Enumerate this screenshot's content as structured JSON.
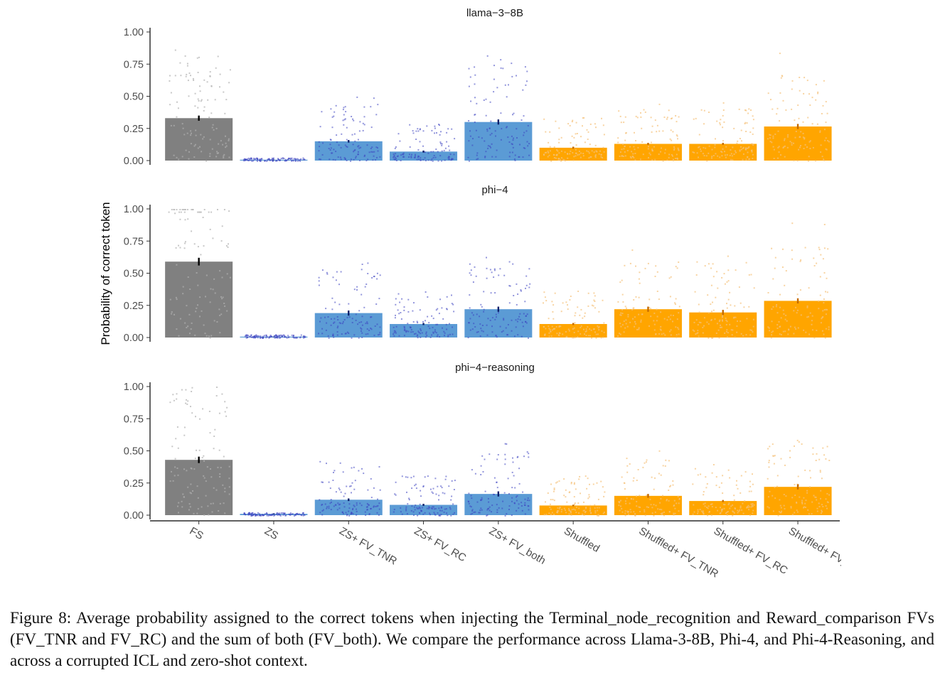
{
  "chart_data": [
    {
      "type": "bar",
      "title": "llama−3−8B",
      "categories": [
        "FS",
        "ZS",
        "ZS+ FV_TNR",
        "ZS+ FV_RC",
        "ZS+ FV_both",
        "Shuffled",
        "Shuffled+ FV_TNR",
        "Shuffled+ FV_RC",
        "Shuffled+ FV_both"
      ],
      "values": [
        0.33,
        0.005,
        0.15,
        0.07,
        0.3,
        0.1,
        0.13,
        0.13,
        0.265
      ],
      "errors": [
        0.02,
        0.002,
        0.01,
        0.008,
        0.02,
        0.008,
        0.008,
        0.008,
        0.02
      ],
      "colors": [
        "#808080",
        "#5b9bd5",
        "#5b9bd5",
        "#5b9bd5",
        "#5b9bd5",
        "#ffa500",
        "#ffa500",
        "#ffa500",
        "#ffa500"
      ],
      "ylim": [
        0,
        1
      ],
      "yticks": [
        "0.00",
        "0.25",
        "0.50",
        "0.75",
        "1.00"
      ],
      "ylabel": "Probability of correct token"
    },
    {
      "type": "bar",
      "title": "phi−4",
      "categories": [
        "FS",
        "ZS",
        "ZS+ FV_TNR",
        "ZS+ FV_RC",
        "ZS+ FV_both",
        "Shuffled",
        "Shuffled+ FV_TNR",
        "Shuffled+ FV_RC",
        "Shuffled+ FV_both"
      ],
      "values": [
        0.59,
        0.005,
        0.19,
        0.105,
        0.22,
        0.105,
        0.22,
        0.195,
        0.285
      ],
      "errors": [
        0.03,
        0.002,
        0.02,
        0.008,
        0.02,
        0.008,
        0.02,
        0.02,
        0.02
      ],
      "colors": [
        "#808080",
        "#5b9bd5",
        "#5b9bd5",
        "#5b9bd5",
        "#5b9bd5",
        "#ffa500",
        "#ffa500",
        "#ffa500",
        "#ffa500"
      ],
      "ylim": [
        0,
        1
      ],
      "yticks": [
        "0.00",
        "0.25",
        "0.50",
        "0.75",
        "1.00"
      ],
      "ylabel": "Probability of correct token"
    },
    {
      "type": "bar",
      "title": "phi−4−reasoning",
      "categories": [
        "FS",
        "ZS",
        "ZS+ FV_TNR",
        "ZS+ FV_RC",
        "ZS+ FV_both",
        "Shuffled",
        "Shuffled+ FV_TNR",
        "Shuffled+ FV_RC",
        "Shuffled+ FV_both"
      ],
      "values": [
        0.43,
        0.01,
        0.12,
        0.08,
        0.165,
        0.075,
        0.15,
        0.11,
        0.22
      ],
      "errors": [
        0.025,
        0.003,
        0.01,
        0.008,
        0.02,
        0.006,
        0.015,
        0.008,
        0.02
      ],
      "colors": [
        "#808080",
        "#5b9bd5",
        "#5b9bd5",
        "#5b9bd5",
        "#5b9bd5",
        "#ffa500",
        "#ffa500",
        "#ffa500",
        "#ffa500"
      ],
      "ylim": [
        0,
        1
      ],
      "yticks": [
        "0.00",
        "0.25",
        "0.50",
        "0.75",
        "1.00"
      ],
      "ylabel": "Probability of correct token"
    }
  ],
  "x_category_labels": [
    "FS",
    "ZS",
    "ZS+ FV_TNR",
    "ZS+ FV_RC",
    "ZS+ FV_both",
    "Shuffled",
    "Shuffled+ FV_TNR",
    "Shuffled+ FV_RC",
    "Shuffled+ FV_both"
  ],
  "ylabel": "Probability of correct token",
  "caption": "Figure 8: Average probability assigned to the correct tokens when injecting the Terminal_node_recognition and Reward_comparison FVs (FV_TNR and FV_RC) and the sum of both (FV_both). We compare the performance across Llama-3-8B, Phi-4, and Phi-4-Reasoning, and across a corrupted ICL and zero-shot context.",
  "colors": {
    "fs": "#808080",
    "zs": "#5b9bd5",
    "shuffled": "#ffa500",
    "fs_points": "#b0b0b0",
    "zs_points": "#3a3fbf",
    "shuffled_points": "#f5c27a"
  }
}
